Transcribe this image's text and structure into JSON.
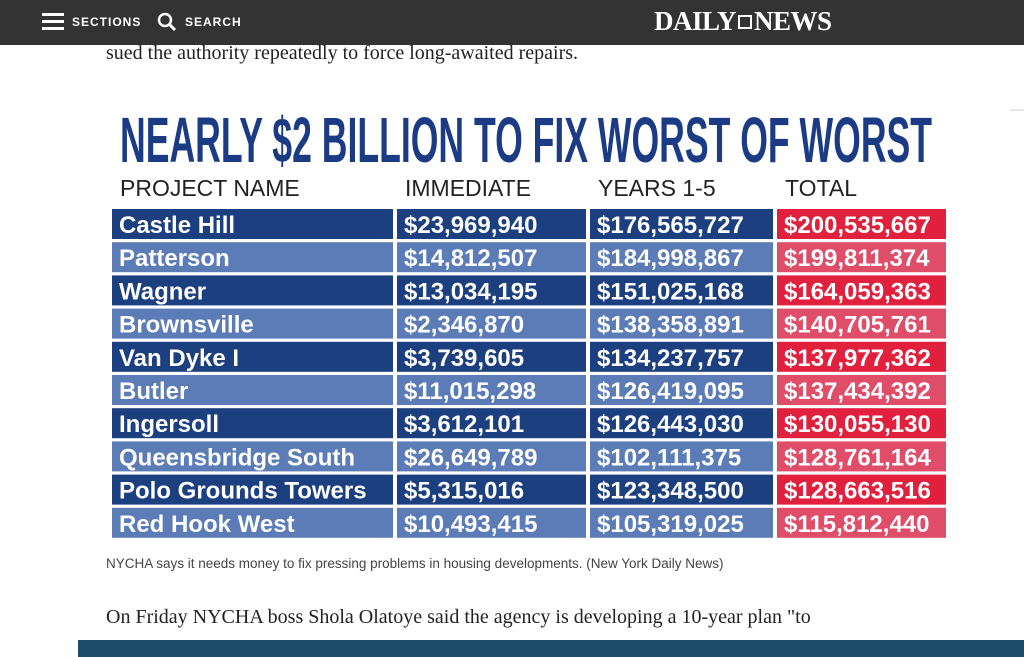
{
  "header": {
    "sections": "SECTIONS",
    "search": "SEARCH",
    "logo": [
      "DAILY",
      "NEWS"
    ]
  },
  "article": {
    "text_top": "sued the authority repeatedly to force long-awaited repairs.",
    "graphic": {
      "title": "NEARLY $2 BILLION TO FIX WORST OF WORST",
      "columns": [
        "PROJECT NAME",
        "IMMEDIATE",
        "YEARS 1-5",
        "TOTAL"
      ],
      "rows": [
        [
          "Castle Hill",
          "$23,969,940",
          "$176,565,727",
          "$200,535,667"
        ],
        [
          "Patterson",
          "$14,812,507",
          "$184,998,867",
          "$199,811,374"
        ],
        [
          "Wagner",
          "$13,034,195",
          "$151,025,168",
          "$164,059,363"
        ],
        [
          "Brownsville",
          "$2,346,870",
          "$138,358,891",
          "$140,705,761"
        ],
        [
          "Van Dyke I",
          "$3,739,605",
          "$134,237,757",
          "$137,977,362"
        ],
        [
          "Butler",
          "$11,015,298",
          "$126,419,095",
          "$137,434,392"
        ],
        [
          "Ingersoll",
          "$3,612,101",
          "$126,443,030",
          "$130,055,130"
        ],
        [
          "Queensbridge South",
          "$26,649,789",
          "$102,111,375",
          "$128,761,164"
        ],
        [
          "Polo Grounds Towers",
          "$5,315,016",
          "$123,348,500",
          "$128,663,516"
        ],
        [
          "Red Hook West",
          "$10,493,415",
          "$105,319,025",
          "$115,812,440"
        ]
      ]
    },
    "caption": "NYCHA says it needs money to fix pressing problems in housing developments. (New York Daily News)",
    "text_bottom": "On Friday NYCHA boss Shola Olatoye said the agency is developing a 10-year plan \"to"
  }
}
